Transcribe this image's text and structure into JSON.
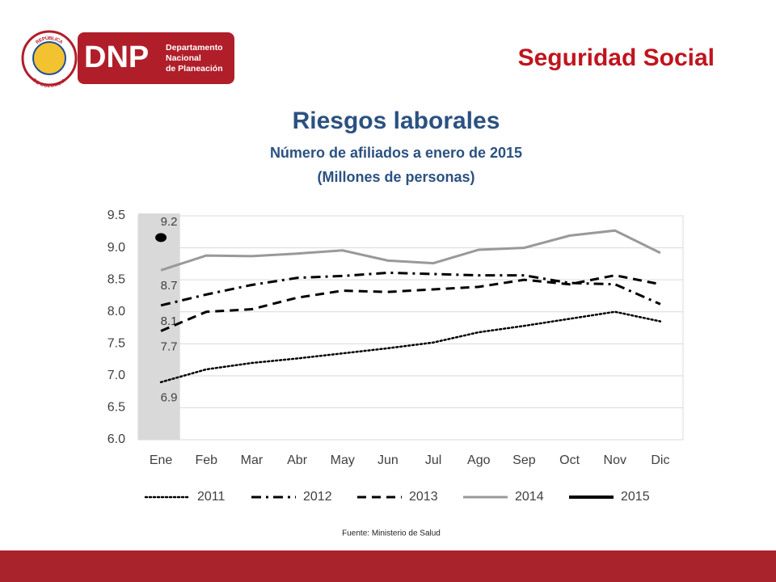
{
  "header": {
    "emblem_top": "REPÚBLICA",
    "emblem_bottom": "DE COLOMBIA",
    "logo_text": "DNP",
    "logo_lines": [
      "Departamento",
      "Nacional",
      "de Planeación"
    ],
    "section": "Seguridad Social"
  },
  "chart_data": {
    "type": "line",
    "title": "Riesgos laborales",
    "subtitle": [
      "Número de afiliados a enero de 2015",
      "(Millones de personas)"
    ],
    "categories": [
      "Ene",
      "Feb",
      "Mar",
      "Abr",
      "May",
      "Jun",
      "Jul",
      "Ago",
      "Sep",
      "Oct",
      "Nov",
      "Dic"
    ],
    "series": [
      {
        "name": "2011",
        "color": "#000000",
        "style": "dotted",
        "values": [
          6.9,
          7.1,
          7.2,
          7.27,
          7.35,
          7.43,
          7.52,
          7.68,
          7.78,
          7.89,
          8.0,
          7.85
        ],
        "value_labels": [
          "6.9",
          null,
          null,
          null,
          null,
          null,
          null,
          null,
          null,
          null,
          null,
          null
        ]
      },
      {
        "name": "2012",
        "color": "#000000",
        "style": "dashdot",
        "values": [
          8.1,
          8.27,
          8.42,
          8.53,
          8.56,
          8.61,
          8.59,
          8.57,
          8.57,
          8.45,
          8.43,
          8.12
        ],
        "value_labels": [
          "8.1",
          null,
          null,
          null,
          null,
          null,
          null,
          null,
          null,
          null,
          null,
          null
        ]
      },
      {
        "name": "2013",
        "color": "#000000",
        "style": "dashed",
        "values": [
          7.7,
          8.0,
          8.04,
          8.22,
          8.33,
          8.31,
          8.35,
          8.39,
          8.5,
          8.43,
          8.57,
          8.43
        ],
        "value_labels": [
          "7.7",
          null,
          null,
          null,
          null,
          null,
          null,
          null,
          null,
          null,
          null,
          null
        ]
      },
      {
        "name": "2014",
        "color": "#999999",
        "style": "solid",
        "values": [
          8.65,
          8.88,
          8.87,
          8.91,
          8.96,
          8.8,
          8.76,
          8.97,
          9.0,
          9.19,
          9.27,
          8.92
        ],
        "value_labels": [
          "8.7",
          null,
          null,
          null,
          null,
          null,
          null,
          null,
          null,
          null,
          null,
          null
        ]
      },
      {
        "name": "2015",
        "color": "#000000",
        "style": "solid",
        "values": [
          9.16,
          null,
          null,
          null,
          null,
          null,
          null,
          null,
          null,
          null,
          null,
          null
        ],
        "value_labels": [
          "9.2",
          null,
          null,
          null,
          null,
          null,
          null,
          null,
          null,
          null,
          null,
          null
        ]
      }
    ],
    "ylim": [
      6,
      9.5
    ],
    "yticks": [
      {
        "value": 6,
        "label": "6.0"
      },
      6.5,
      {
        "value": 7,
        "label": "7.0"
      },
      7.5,
      {
        "value": 8,
        "label": "8.0"
      },
      8.5,
      {
        "value": 9,
        "label": "9.0"
      },
      9.5
    ],
    "grid": true,
    "highlight_category": 0,
    "legend": "bottom"
  },
  "source": "Fuente: Ministerio de Salud"
}
